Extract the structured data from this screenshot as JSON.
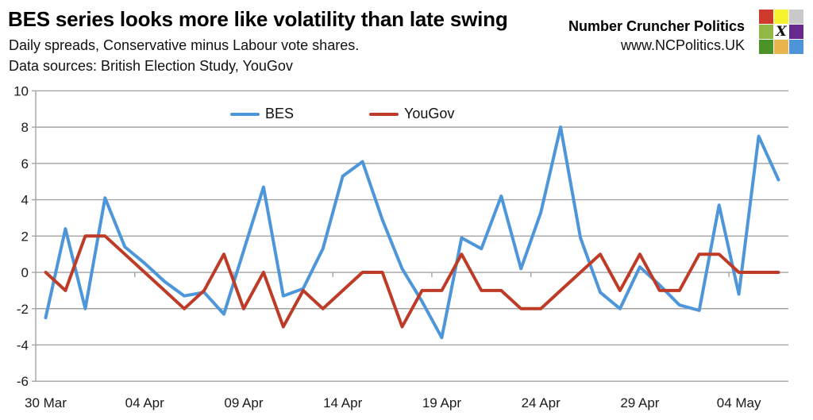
{
  "header": {
    "title": "BES series looks more like volatility than late swing",
    "subtitle_line1": "Daily spreads, Conservative minus Labour vote shares.",
    "subtitle_line2": "Data sources: British Election Study, YouGov",
    "brand": {
      "name": "Number Cruncher Politics",
      "url": "www.NCPolitics.UK",
      "logo_grid_colors": [
        [
          "#ce3a2b",
          "#f6f32e",
          "#c9c9c9"
        ],
        [
          "#8fb944",
          "#ffffff",
          "#68298c"
        ],
        [
          "#4b9327",
          "#e9b64d",
          "#4d95d8"
        ]
      ],
      "logo_center_glyph": "X"
    }
  },
  "legend": {
    "bes_label": "BES",
    "yougov_label": "YouGov"
  },
  "chart_data": {
    "type": "line",
    "title": "BES series looks more like volatility than late swing",
    "xlabel": "",
    "ylabel": "",
    "grid": "horizontal",
    "legend_position": "top-inside",
    "ylim": [
      -6,
      10
    ],
    "yticks": [
      10,
      8,
      6,
      4,
      2,
      0,
      -2,
      -4,
      -6
    ],
    "xtick_every": 5,
    "xtick_labels": [
      "30 Mar",
      "04 Apr",
      "09 Apr",
      "14 Apr",
      "19 Apr",
      "24 Apr",
      "29 Apr",
      "04 May"
    ],
    "categories": [
      "30 Mar",
      "31 Mar",
      "01 Apr",
      "02 Apr",
      "03 Apr",
      "04 Apr",
      "05 Apr",
      "06 Apr",
      "07 Apr",
      "08 Apr",
      "09 Apr",
      "10 Apr",
      "11 Apr",
      "12 Apr",
      "13 Apr",
      "14 Apr",
      "15 Apr",
      "16 Apr",
      "17 Apr",
      "18 Apr",
      "19 Apr",
      "20 Apr",
      "21 Apr",
      "22 Apr",
      "23 Apr",
      "24 Apr",
      "25 Apr",
      "26 Apr",
      "27 Apr",
      "28 Apr",
      "29 Apr",
      "30 Apr",
      "01 May",
      "02 May",
      "03 May",
      "04 May",
      "05 May",
      "06 May"
    ],
    "series": [
      {
        "name": "BES",
        "color": "#4d96d9",
        "values": [
          -2.5,
          2.4,
          -2.0,
          4.1,
          1.4,
          0.5,
          -0.5,
          -1.3,
          -1.1,
          -2.3,
          1.2,
          4.7,
          -1.3,
          -0.9,
          1.3,
          5.3,
          6.1,
          2.9,
          0.2,
          -1.6,
          -3.6,
          1.9,
          1.3,
          4.2,
          0.2,
          3.3,
          8.0,
          1.9,
          -1.1,
          -2.0,
          0.3,
          -0.7,
          -1.8,
          -2.1,
          3.7,
          -1.2,
          7.5,
          5.1
        ]
      },
      {
        "name": "YouGov",
        "color": "#bd3b27",
        "values": [
          0,
          -1,
          2,
          2,
          1,
          0,
          -1,
          -2,
          -1,
          1,
          -2,
          0,
          -3,
          -1,
          -2,
          -1,
          0,
          0,
          -3,
          -1,
          -1,
          1,
          -1,
          -1,
          -2,
          -2,
          -1,
          0,
          1,
          -1,
          1,
          -1,
          -1,
          1,
          1,
          0,
          0,
          0
        ]
      }
    ],
    "axis_color": "#a3a3a3",
    "tick_label_color": "#1a1a1a",
    "tick_label_size": 17
  }
}
